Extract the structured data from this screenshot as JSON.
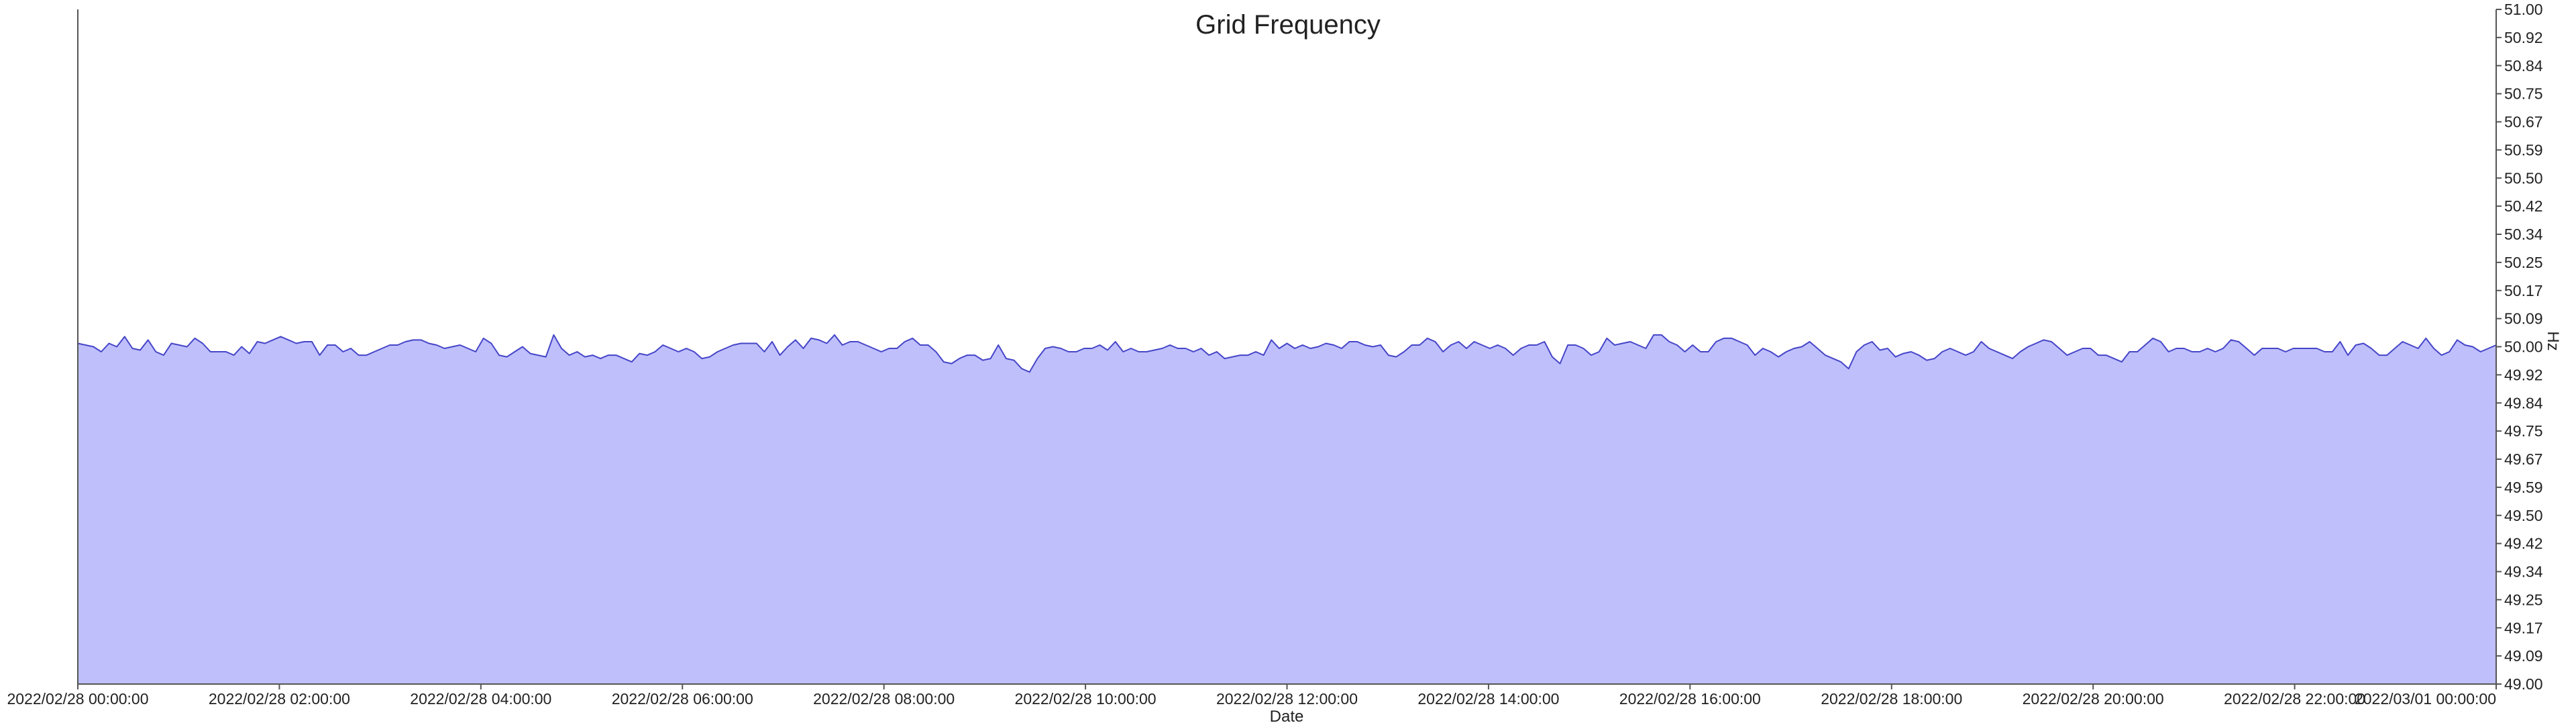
{
  "chart_data": {
    "type": "area",
    "title": "Grid Frequency",
    "xlabel": "Date",
    "ylabel": "Hz",
    "y_axis_side": "right",
    "ylim": [
      49.0,
      51.0
    ],
    "y_ticks": [
      "49.00",
      "49.09",
      "49.17",
      "49.25",
      "49.34",
      "49.42",
      "49.50",
      "49.59",
      "49.67",
      "49.75",
      "49.84",
      "49.92",
      "50.00",
      "50.09",
      "50.17",
      "50.25",
      "50.34",
      "50.42",
      "50.50",
      "50.59",
      "50.67",
      "50.75",
      "50.84",
      "50.92",
      "51.00"
    ],
    "x_ticks": [
      "2022/02/28 00:00:00",
      "2022/02/28 02:00:00",
      "2022/02/28 04:00:00",
      "2022/02/28 06:00:00",
      "2022/02/28 08:00:00",
      "2022/02/28 10:00:00",
      "2022/02/28 12:00:00",
      "2022/02/28 14:00:00",
      "2022/02/28 16:00:00",
      "2022/02/28 18:00:00",
      "2022/02/28 20:00:00",
      "2022/02/28 22:00:00",
      "2022/03/01 00:00:00"
    ],
    "x_range": [
      "2022/02/28 00:00:00",
      "2022/03/01 00:00:00"
    ],
    "sample_interval_minutes": 5,
    "grid": false,
    "legend": "none",
    "colors": {
      "fill": "#bfbffc",
      "line": "#4545c8"
    },
    "series": [
      {
        "values": [
          50.01,
          50.005,
          50.0,
          49.985,
          50.01,
          50.0,
          50.03,
          49.995,
          49.99,
          50.02,
          49.985,
          49.975,
          50.01,
          50.005,
          50.0,
          50.025,
          50.01,
          49.985,
          49.985,
          49.985,
          49.975,
          50.0,
          49.98,
          50.015,
          50.01,
          50.02,
          50.03,
          50.02,
          50.01,
          50.015,
          50.015,
          49.975,
          50.005,
          50.005,
          49.985,
          49.995,
          49.975,
          49.975,
          49.985,
          49.995,
          50.005,
          50.005,
          50.015,
          50.02,
          50.02,
          50.01,
          50.005,
          49.995,
          50.0,
          50.005,
          49.995,
          49.985,
          50.025,
          50.01,
          49.975,
          49.97,
          49.985,
          50.0,
          49.98,
          49.975,
          49.97,
          50.035,
          49.995,
          49.975,
          49.985,
          49.97,
          49.975,
          49.965,
          49.975,
          49.975,
          49.965,
          49.955,
          49.98,
          49.975,
          49.985,
          50.005,
          49.995,
          49.985,
          49.995,
          49.985,
          49.965,
          49.97,
          49.985,
          49.995,
          50.005,
          50.01,
          50.01,
          50.01,
          49.985,
          50.015,
          49.975,
          50.0,
          50.02,
          49.995,
          50.025,
          50.02,
          50.01,
          50.035,
          50.005,
          50.015,
          50.015,
          50.005,
          49.995,
          49.985,
          49.995,
          49.995,
          50.015,
          50.025,
          50.005,
          50.005,
          49.985,
          49.955,
          49.95,
          49.965,
          49.975,
          49.975,
          49.96,
          49.965,
          50.005,
          49.965,
          49.96,
          49.935,
          49.925,
          49.965,
          49.995,
          50.0,
          49.995,
          49.985,
          49.985,
          49.995,
          49.995,
          50.005,
          49.99,
          50.015,
          49.985,
          49.995,
          49.985,
          49.985,
          49.99,
          49.995,
          50.005,
          49.995,
          49.995,
          49.985,
          49.995,
          49.975,
          49.985,
          49.965,
          49.97,
          49.975,
          49.975,
          49.985,
          49.975,
          50.02,
          49.995,
          50.01,
          49.995,
          50.005,
          49.995,
          50.0,
          50.01,
          50.005,
          49.995,
          50.015,
          50.015,
          50.005,
          50.0,
          50.005,
          49.975,
          49.97,
          49.985,
          50.005,
          50.005,
          50.025,
          50.015,
          49.985,
          50.005,
          50.015,
          49.995,
          50.015,
          50.005,
          49.995,
          50.005,
          49.995,
          49.975,
          49.995,
          50.005,
          50.005,
          50.015,
          49.97,
          49.95,
          50.005,
          50.005,
          49.995,
          49.975,
          49.985,
          50.025,
          50.005,
          50.01,
          50.015,
          50.005,
          49.995,
          50.035,
          50.035,
          50.015,
          50.005,
          49.985,
          50.005,
          49.985,
          49.985,
          50.015,
          50.025,
          50.025,
          50.015,
          50.005,
          49.975,
          49.995,
          49.985,
          49.97,
          49.985,
          49.995,
          50.0,
          50.015,
          49.995,
          49.975,
          49.965,
          49.955,
          49.935,
          49.985,
          50.005,
          50.015,
          49.99,
          49.995,
          49.97,
          49.98,
          49.985,
          49.975,
          49.96,
          49.965,
          49.985,
          49.995,
          49.985,
          49.975,
          49.985,
          50.015,
          49.995,
          49.985,
          49.975,
          49.965,
          49.985,
          50.0,
          50.01,
          50.02,
          50.015,
          49.995,
          49.975,
          49.985,
          49.995,
          49.995,
          49.975,
          49.975,
          49.965,
          49.955,
          49.985,
          49.985,
          50.005,
          50.025,
          50.015,
          49.985,
          49.995,
          49.995,
          49.985,
          49.985,
          49.995,
          49.985,
          49.995,
          50.02,
          50.015,
          49.995,
          49.975,
          49.995,
          49.995,
          49.995,
          49.985,
          49.995,
          49.995,
          49.995,
          49.995,
          49.985,
          49.985,
          50.015,
          49.975,
          50.005,
          50.01,
          49.995,
          49.975,
          49.975,
          49.995,
          50.015,
          50.005,
          49.995,
          50.025,
          49.995,
          49.975,
          49.985,
          50.02,
          50.005,
          50.0,
          49.985,
          49.995,
          50.005
        ]
      }
    ]
  }
}
